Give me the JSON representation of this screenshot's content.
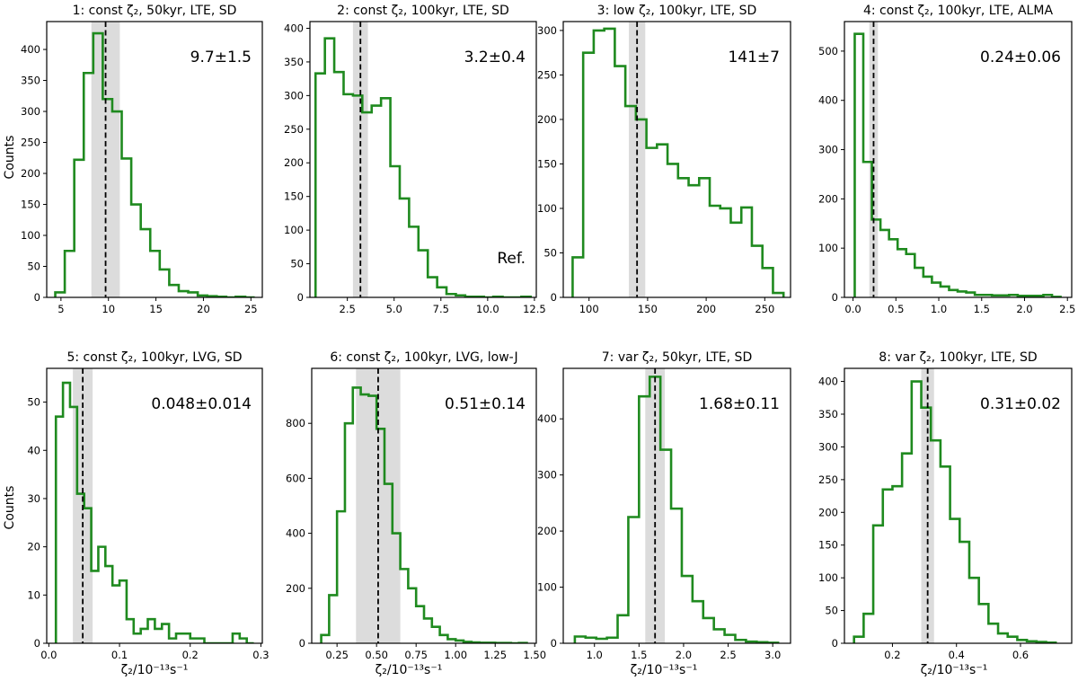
{
  "figure": {
    "ylabel": "Counts",
    "xlabel": "ζ₂/10⁻¹³s⁻¹",
    "colors": {
      "histogram": "#1f8a1f",
      "band": "#dcdcdc",
      "median_line": "#000000"
    }
  },
  "chart_data": [
    {
      "type": "histogram",
      "title": "1: const ζ₂, 50kyr, LTE, SD",
      "annotation": "9.7±1.5",
      "median": 9.7,
      "band": [
        8.2,
        11.2
      ],
      "xlim": [
        3.5,
        26.2
      ],
      "ylim": [
        0,
        445
      ],
      "xticks": [
        5,
        10,
        15,
        20,
        25
      ],
      "xtick_labels": [
        "5",
        "10",
        "15",
        "20",
        "25"
      ],
      "yticks": [
        0,
        50,
        100,
        150,
        200,
        250,
        300,
        350,
        400
      ],
      "ytick_labels": [
        "0",
        "50",
        "100",
        "150",
        "200",
        "250",
        "300",
        "350",
        "400"
      ],
      "edges": [
        4.4,
        5.4,
        6.4,
        7.4,
        8.4,
        9.4,
        10.4,
        11.4,
        12.4,
        13.4,
        14.4,
        15.4,
        16.4,
        17.4,
        18.4,
        19.4,
        20.4,
        21.4,
        22.4,
        23.4,
        24.4,
        25.4
      ],
      "counts": [
        8,
        75,
        222,
        362,
        426,
        320,
        300,
        224,
        150,
        110,
        75,
        45,
        20,
        10,
        8,
        3,
        2,
        1,
        0,
        1,
        0
      ]
    },
    {
      "type": "histogram",
      "title": "2: const ζ₂, 100kyr, LTE, SD",
      "annotation": "3.2±0.4",
      "note": "Ref.",
      "median": 3.2,
      "band": [
        2.8,
        3.6
      ],
      "xlim": [
        0.5,
        12.6
      ],
      "ylim": [
        0,
        410
      ],
      "xticks": [
        2.5,
        5.0,
        7.5,
        10.0,
        12.5
      ],
      "xtick_labels": [
        "2.5",
        "5.0",
        "7.5",
        "10.0",
        "12.5"
      ],
      "yticks": [
        0,
        50,
        100,
        150,
        200,
        250,
        300,
        350,
        400
      ],
      "ytick_labels": [
        "0",
        "50",
        "100",
        "150",
        "200",
        "250",
        "300",
        "350",
        "400"
      ],
      "edges": [
        0.8,
        1.3,
        1.8,
        2.3,
        2.8,
        3.3,
        3.8,
        4.3,
        4.8,
        5.3,
        5.8,
        6.3,
        6.8,
        7.3,
        7.8,
        8.3,
        8.8,
        9.3,
        9.8,
        10.3,
        10.8,
        11.3,
        11.8,
        12.3
      ],
      "counts": [
        333,
        385,
        335,
        302,
        300,
        275,
        285,
        296,
        195,
        147,
        105,
        70,
        30,
        15,
        5,
        3,
        1,
        1,
        0,
        1,
        0,
        0,
        1
      ]
    },
    {
      "type": "histogram",
      "title": "3: low ζ₂, 100kyr, LTE, SD",
      "annotation": "141±7",
      "median": 141,
      "band": [
        134,
        148
      ],
      "xlim": [
        78,
        272
      ],
      "ylim": [
        0,
        310
      ],
      "xticks": [
        100,
        150,
        200,
        250
      ],
      "xtick_labels": [
        "100",
        "150",
        "200",
        "250"
      ],
      "yticks": [
        0,
        50,
        100,
        150,
        200,
        250,
        300
      ],
      "ytick_labels": [
        "0",
        "50",
        "100",
        "150",
        "200",
        "250",
        "300"
      ],
      "edges": [
        86,
        95,
        104,
        113,
        122,
        131,
        140,
        149,
        158,
        167,
        176,
        185,
        194,
        203,
        212,
        221,
        230,
        239,
        248,
        257,
        266
      ],
      "counts": [
        45,
        275,
        300,
        302,
        260,
        215,
        200,
        168,
        172,
        150,
        134,
        126,
        134,
        103,
        100,
        84,
        101,
        58,
        33,
        5
      ]
    },
    {
      "type": "histogram",
      "title": "4: const ζ₂, 100kyr, LTE, ALMA",
      "annotation": "0.24±0.06",
      "median": 0.24,
      "band": [
        0.19,
        0.29
      ],
      "xlim": [
        -0.1,
        2.55
      ],
      "ylim": [
        0,
        560
      ],
      "xticks": [
        0.0,
        0.5,
        1.0,
        1.5,
        2.0,
        2.5
      ],
      "xtick_labels": [
        "0.0",
        "0.5",
        "1.0",
        "1.5",
        "2.0",
        "2.5"
      ],
      "yticks": [
        0,
        100,
        200,
        300,
        400,
        500
      ],
      "ytick_labels": [
        "0",
        "100",
        "200",
        "300",
        "400",
        "500"
      ],
      "edges": [
        0.02,
        0.12,
        0.22,
        0.32,
        0.42,
        0.52,
        0.62,
        0.72,
        0.82,
        0.92,
        1.02,
        1.12,
        1.22,
        1.32,
        1.42,
        1.52,
        1.62,
        1.72,
        1.82,
        1.92,
        2.02,
        2.12,
        2.22,
        2.32,
        2.42
      ],
      "counts": [
        535,
        275,
        158,
        137,
        118,
        98,
        88,
        60,
        42,
        30,
        22,
        15,
        12,
        10,
        5,
        5,
        4,
        4,
        5,
        3,
        3,
        3,
        5,
        1
      ]
    },
    {
      "type": "histogram",
      "title": "5: const ζ₂, 100kyr, LVG, SD",
      "annotation": "0.048±0.014",
      "median": 0.048,
      "band": [
        0.034,
        0.062
      ],
      "xlim": [
        -0.003,
        0.302
      ],
      "ylim": [
        0,
        57
      ],
      "xticks": [
        0.0,
        0.1,
        0.2,
        0.3
      ],
      "xtick_labels": [
        "0.0",
        "0.1",
        "0.2",
        "0.3"
      ],
      "yticks": [
        0,
        10,
        20,
        30,
        40,
        50
      ],
      "ytick_labels": [
        "0",
        "10",
        "20",
        "30",
        "40",
        "50"
      ],
      "edges": [
        0.01,
        0.02,
        0.03,
        0.04,
        0.05,
        0.06,
        0.07,
        0.08,
        0.09,
        0.1,
        0.11,
        0.12,
        0.13,
        0.14,
        0.15,
        0.16,
        0.17,
        0.18,
        0.19,
        0.2,
        0.21,
        0.22,
        0.23,
        0.24,
        0.25,
        0.26,
        0.27,
        0.28,
        0.29
      ],
      "counts": [
        47,
        54,
        49,
        31,
        28,
        15,
        20,
        16,
        12,
        13,
        5,
        2,
        3,
        5,
        3,
        4,
        1,
        2,
        2,
        1,
        1,
        0,
        0,
        0,
        0,
        2,
        1,
        0
      ]
    },
    {
      "type": "histogram",
      "title": "6: const ζ₂, 100kyr, LVG, low-J",
      "annotation": "0.51±0.14",
      "median": 0.51,
      "band": [
        0.37,
        0.65
      ],
      "xlim": [
        0.09,
        1.51
      ],
      "ylim": [
        0,
        1000
      ],
      "xticks": [
        0.25,
        0.5,
        0.75,
        1.0,
        1.25,
        1.5
      ],
      "xtick_labels": [
        "0.25",
        "0.50",
        "0.75",
        "1.00",
        "1.25",
        "1.50"
      ],
      "yticks": [
        0,
        200,
        400,
        600,
        800
      ],
      "ytick_labels": [
        "0",
        "200",
        "400",
        "600",
        "800"
      ],
      "edges": [
        0.15,
        0.2,
        0.25,
        0.3,
        0.35,
        0.4,
        0.45,
        0.5,
        0.55,
        0.6,
        0.65,
        0.7,
        0.75,
        0.8,
        0.85,
        0.9,
        0.95,
        1.0,
        1.05,
        1.1,
        1.15,
        1.2,
        1.25,
        1.3,
        1.35,
        1.4,
        1.45
      ],
      "counts": [
        30,
        175,
        480,
        800,
        930,
        905,
        900,
        780,
        580,
        400,
        270,
        200,
        135,
        90,
        60,
        30,
        15,
        10,
        5,
        3,
        2,
        2,
        1,
        1,
        0,
        1
      ]
    },
    {
      "type": "histogram",
      "title": "7: var ζ₂, 50kyr, LTE, SD",
      "annotation": "1.68±0.11",
      "median": 1.68,
      "band": [
        1.57,
        1.79
      ],
      "xlim": [
        0.65,
        3.2
      ],
      "ylim": [
        0,
        490
      ],
      "xticks": [
        1.0,
        1.5,
        2.0,
        2.5,
        3.0
      ],
      "xtick_labels": [
        "1.0",
        "1.5",
        "2.0",
        "2.5",
        "3.0"
      ],
      "yticks": [
        0,
        100,
        200,
        300,
        400
      ],
      "ytick_labels": [
        "0",
        "100",
        "200",
        "300",
        "400"
      ],
      "edges": [
        0.78,
        0.9,
        1.02,
        1.14,
        1.26,
        1.38,
        1.5,
        1.62,
        1.74,
        1.86,
        1.98,
        2.1,
        2.22,
        2.34,
        2.46,
        2.58,
        2.7,
        2.82,
        2.94,
        3.06
      ],
      "counts": [
        12,
        10,
        8,
        10,
        50,
        225,
        440,
        475,
        345,
        240,
        120,
        75,
        45,
        25,
        15,
        6,
        3,
        2,
        1
      ]
    },
    {
      "type": "histogram",
      "title": "8: var ζ₂, 100kyr, LTE, SD",
      "annotation": "0.31±0.02",
      "median": 0.31,
      "band": [
        0.29,
        0.33
      ],
      "xlim": [
        0.05,
        0.76
      ],
      "ylim": [
        0,
        420
      ],
      "xticks": [
        0.2,
        0.4,
        0.6
      ],
      "xtick_labels": [
        "0.2",
        "0.4",
        "0.6"
      ],
      "yticks": [
        0,
        50,
        100,
        150,
        200,
        250,
        300,
        350,
        400
      ],
      "ytick_labels": [
        "0",
        "50",
        "100",
        "150",
        "200",
        "250",
        "300",
        "350",
        "400"
      ],
      "edges": [
        0.08,
        0.11,
        0.14,
        0.17,
        0.2,
        0.23,
        0.26,
        0.29,
        0.32,
        0.35,
        0.38,
        0.41,
        0.44,
        0.47,
        0.5,
        0.53,
        0.56,
        0.59,
        0.62,
        0.65,
        0.68,
        0.71
      ],
      "counts": [
        10,
        45,
        180,
        235,
        240,
        290,
        400,
        360,
        310,
        270,
        190,
        155,
        100,
        60,
        30,
        15,
        10,
        5,
        3,
        2,
        1
      ]
    }
  ]
}
